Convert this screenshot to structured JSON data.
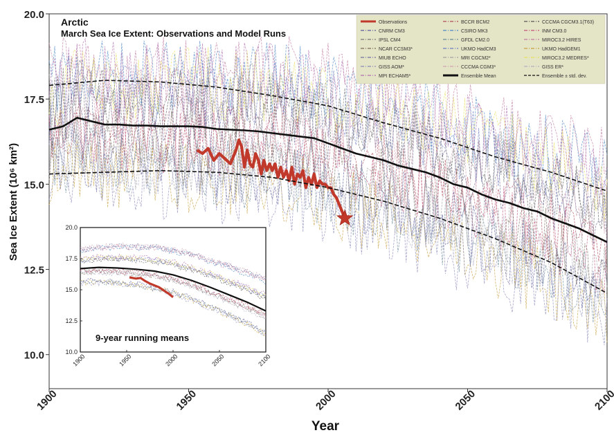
{
  "chart_data": [
    {
      "type": "line",
      "title": "Arctic",
      "subtitle": "March Sea Ice Extent: Observations and Model Runs",
      "xlabel": "Year",
      "ylabel": "Sea Ice Extent (10⁶ km²)",
      "xlim": [
        1900,
        2100
      ],
      "ylim": [
        9.0,
        20.0
      ],
      "x_ticks": [
        "1900",
        "1950",
        "2000",
        "2050",
        "2100"
      ],
      "y_ticks": [
        "10.0",
        "12.5",
        "15.0",
        "17.5",
        "20.0"
      ],
      "grid": false,
      "legend_position": "top-right",
      "legend": [
        {
          "name": "Observations",
          "color": "#c0392b",
          "style": "thick"
        },
        {
          "name": "BCCR BCM2",
          "color": "#b04a5a",
          "style": "dashdot"
        },
        {
          "name": "CCCMA CGCM3.1(T63)",
          "color": "#555555",
          "style": "dashdot"
        },
        {
          "name": "CNRM CM3",
          "color": "#5a5a9a",
          "style": "dashdot"
        },
        {
          "name": "CSIRO MK3",
          "color": "#4a86c5",
          "style": "dashdot"
        },
        {
          "name": "INM CM3.0",
          "color": "#c0507a",
          "style": "dashdot"
        },
        {
          "name": "IPSL CM4",
          "color": "#777777",
          "style": "dashdot"
        },
        {
          "name": "GFDL CM2.0",
          "color": "#6a8a9a",
          "style": "dashdot"
        },
        {
          "name": "MIROC3.2 HIRES",
          "color": "#c07aa0",
          "style": "dashdot"
        },
        {
          "name": "NCAR CCSM3*",
          "color": "#7a6a5a",
          "style": "dashdot"
        },
        {
          "name": "UKMO HadCM3",
          "color": "#6a7ac0",
          "style": "dashdot"
        },
        {
          "name": "UKMO HadGEM1",
          "color": "#c8a040",
          "style": "dashdot"
        },
        {
          "name": "MIUB ECHO",
          "color": "#7070a0",
          "style": "dashdot"
        },
        {
          "name": "MRI CGCM2*",
          "color": "#a0a0a0",
          "style": "dashdot"
        },
        {
          "name": "MIROC3.2 MEDRES*",
          "color": "#e8e060",
          "style": "dashdot"
        },
        {
          "name": "GISS AOM*",
          "color": "#8a8aba",
          "style": "dashdot"
        },
        {
          "name": "CCCMA CGM3*",
          "color": "#d0a0b0",
          "style": "dashdot"
        },
        {
          "name": "GISS ER*",
          "color": "#b0b0c8",
          "style": "dashdot"
        },
        {
          "name": "MPI ECHAM5*",
          "color": "#b070b0",
          "style": "dashdot"
        },
        {
          "name": "Ensemble Mean",
          "color": "#111111",
          "style": "thick"
        },
        {
          "name": "Ensemble ± std. dev.",
          "color": "#111111",
          "style": "dashed"
        }
      ],
      "series": [
        {
          "name": "Observations",
          "color": "#c0392b",
          "x": [
            1953,
            1955,
            1957,
            1959,
            1961,
            1963,
            1965,
            1967,
            1968,
            1969,
            1970,
            1971,
            1972,
            1973,
            1974,
            1975,
            1976,
            1977,
            1978,
            1979,
            1980,
            1981,
            1982,
            1983,
            1984,
            1985,
            1986,
            1987,
            1988,
            1989,
            1990,
            1991,
            1992,
            1993,
            1994,
            1995,
            1996,
            1997,
            1998,
            1999,
            2000,
            2001,
            2002,
            2003,
            2004,
            2005,
            2006
          ],
          "values": [
            16.0,
            15.9,
            16.05,
            15.7,
            15.9,
            15.75,
            15.6,
            16.0,
            16.3,
            16.1,
            15.5,
            16.0,
            15.6,
            15.5,
            15.9,
            15.7,
            15.3,
            15.7,
            15.4,
            15.6,
            15.4,
            15.6,
            15.2,
            15.5,
            15.2,
            15.4,
            15.1,
            15.5,
            15.0,
            15.3,
            15.2,
            15.4,
            14.9,
            15.2,
            15.0,
            15.3,
            14.9,
            15.1,
            15.0,
            15.0,
            14.9,
            14.9,
            14.7,
            14.6,
            14.4,
            14.2,
            14.0
          ]
        },
        {
          "name": "Ensemble Mean",
          "color": "#111111",
          "x": [
            1900,
            1905,
            1910,
            1915,
            1920,
            1925,
            1930,
            1935,
            1940,
            1945,
            1950,
            1955,
            1960,
            1965,
            1970,
            1975,
            1980,
            1985,
            1990,
            1995,
            2000,
            2005,
            2010,
            2015,
            2020,
            2025,
            2030,
            2035,
            2040,
            2045,
            2050,
            2055,
            2060,
            2065,
            2070,
            2075,
            2080,
            2085,
            2090,
            2095,
            2100
          ],
          "values": [
            16.6,
            16.7,
            16.95,
            16.85,
            16.75,
            16.75,
            16.72,
            16.72,
            16.7,
            16.7,
            16.7,
            16.68,
            16.62,
            16.6,
            16.58,
            16.55,
            16.5,
            16.45,
            16.4,
            16.35,
            16.2,
            16.05,
            15.9,
            15.8,
            15.7,
            15.55,
            15.45,
            15.35,
            15.2,
            15.0,
            14.9,
            14.7,
            14.55,
            14.45,
            14.3,
            14.2,
            14.0,
            13.85,
            13.7,
            13.5,
            13.3
          ]
        },
        {
          "name": "Ensemble + std. dev.",
          "color": "#111111",
          "x": [
            1900,
            1920,
            1940,
            1960,
            1980,
            2000,
            2020,
            2040,
            2060,
            2080,
            2100
          ],
          "values": [
            17.9,
            18.05,
            18.0,
            17.85,
            17.6,
            17.3,
            16.8,
            16.35,
            15.8,
            15.35,
            14.8
          ]
        },
        {
          "name": "Ensemble - std. dev.",
          "color": "#111111",
          "x": [
            1900,
            1920,
            1940,
            1960,
            1980,
            2000,
            2020,
            2040,
            2060,
            2080,
            2100
          ],
          "values": [
            15.3,
            15.35,
            15.4,
            15.35,
            15.2,
            14.9,
            14.5,
            14.0,
            13.4,
            12.7,
            11.8
          ]
        }
      ],
      "annotations": [
        {
          "type": "star",
          "x": 2006,
          "y": 14.0,
          "color": "#c0392b"
        }
      ]
    },
    {
      "type": "line",
      "title": "9-year running means",
      "xlim": [
        1900,
        2100
      ],
      "ylim": [
        10.0,
        20.0
      ],
      "x_ticks": [
        "1900",
        "1950",
        "2000",
        "2050",
        "2100"
      ],
      "y_ticks": [
        "10.0",
        "12.5",
        "15.0",
        "17.5",
        "20.0"
      ],
      "series": [
        {
          "name": "Observations",
          "color": "#c0392b",
          "x": [
            1953,
            1960,
            1965,
            1970,
            1975,
            1980,
            1985,
            1990,
            1995,
            2000
          ],
          "values": [
            16.0,
            15.9,
            15.95,
            15.7,
            15.5,
            15.35,
            15.2,
            14.95,
            14.7,
            14.4
          ]
        },
        {
          "name": "Ensemble Mean",
          "color": "#111111",
          "x": [
            1900,
            1920,
            1940,
            1960,
            1980,
            2000,
            2020,
            2040,
            2060,
            2080,
            2100
          ],
          "values": [
            16.7,
            16.8,
            16.75,
            16.65,
            16.5,
            16.2,
            15.75,
            15.2,
            14.6,
            14.0,
            13.3
          ]
        }
      ]
    }
  ]
}
